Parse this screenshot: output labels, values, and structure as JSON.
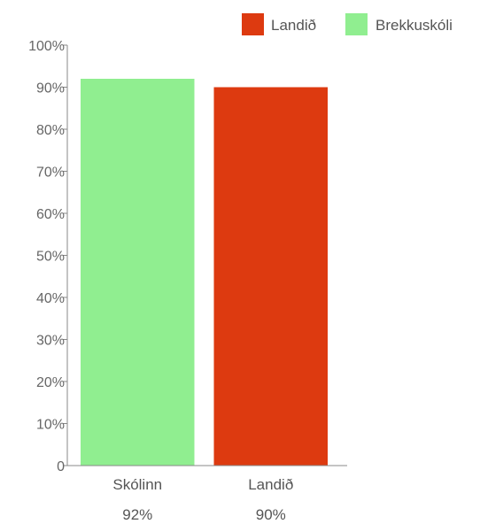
{
  "chart_data": {
    "type": "bar",
    "categories": [
      "Skólinn",
      "Landið"
    ],
    "values": [
      92,
      90
    ],
    "value_labels": [
      "92%",
      "90%"
    ],
    "bar_colors": [
      "#90ee90",
      "#dd3a10"
    ],
    "ylim": [
      0,
      100
    ],
    "yticks": [
      0,
      10,
      20,
      30,
      40,
      50,
      60,
      70,
      80,
      90,
      100
    ],
    "ytick_labels": [
      "0",
      "10%",
      "20%",
      "30%",
      "40%",
      "50%",
      "60%",
      "70%",
      "80%",
      "90%",
      "100%"
    ],
    "grid": false,
    "legend_position": "top-right",
    "legend": [
      {
        "label": "Landið",
        "color": "#dd3a10"
      },
      {
        "label": "Brekkuskóli",
        "color": "#90ee90"
      }
    ]
  }
}
